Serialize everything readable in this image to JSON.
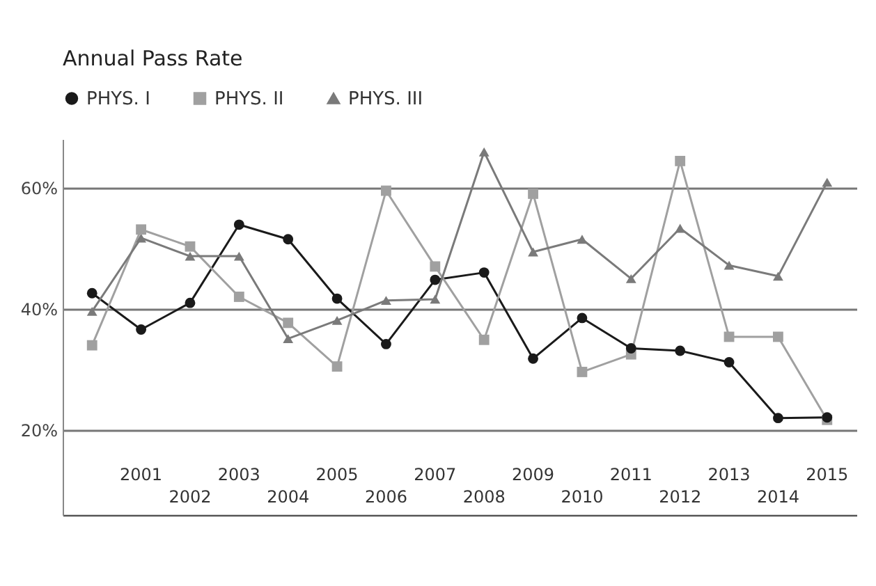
{
  "chart_data": {
    "type": "line",
    "title": "Annual Pass Rate",
    "categories": [
      null,
      "2001",
      "2002",
      "2003",
      "2004",
      "2005",
      "2006",
      "2007",
      "2008",
      "2009",
      "2010",
      "2011",
      "2012",
      "2013",
      "2014",
      "2015"
    ],
    "series": [
      {
        "name": "PHYS. I",
        "color": "#1a1a1a",
        "marker": "circle",
        "values": [
          42.6,
          36.6,
          41.0,
          53.9,
          51.5,
          41.7,
          34.2,
          44.8,
          46.0,
          31.8,
          38.5,
          33.5,
          33.1,
          31.2,
          22.0,
          22.1
        ]
      },
      {
        "name": "PHYS. II",
        "color": "#a0a0a0",
        "marker": "square",
        "values": [
          34.0,
          53.1,
          50.3,
          42.0,
          37.7,
          30.5,
          59.5,
          47.0,
          34.9,
          59.0,
          29.6,
          32.5,
          64.4,
          35.4,
          35.4,
          21.7
        ]
      },
      {
        "name": "PHYS. III",
        "color": "#7a7a7a",
        "marker": "triangle",
        "values": [
          39.6,
          51.7,
          48.7,
          48.7,
          35.1,
          38.1,
          41.4,
          41.6,
          65.9,
          49.4,
          51.5,
          45.0,
          53.3,
          47.2,
          45.4,
          60.9
        ]
      }
    ],
    "ylim": [
      6,
      68
    ],
    "yticks": [
      {
        "value": 20,
        "label": "20%"
      },
      {
        "value": 40,
        "label": "40%"
      },
      {
        "value": 60,
        "label": "60%"
      }
    ],
    "grid": "y",
    "legend": "top left",
    "line_style": "solid"
  }
}
